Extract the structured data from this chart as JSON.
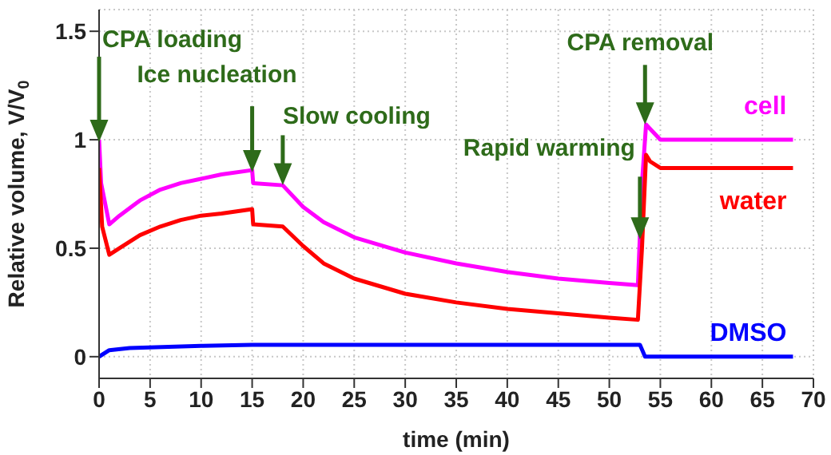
{
  "chart_data": {
    "type": "line",
    "xlabel": "time (min)",
    "ylabel": "Relative volume, V/V$_{0}$",
    "xlim": [
      0,
      70
    ],
    "xticks": [
      0,
      5,
      10,
      15,
      20,
      25,
      30,
      35,
      40,
      45,
      50,
      55,
      60,
      65,
      70
    ],
    "ylim": [
      -0.1,
      1.6
    ],
    "yticks": [
      0,
      0.5,
      1,
      1.5
    ],
    "grid": true,
    "legend": false,
    "marker": "none",
    "line_style": "solid",
    "series": [
      {
        "name": "cell",
        "color": "#ff00ff",
        "x": [
          0,
          0.2,
          1,
          2,
          4,
          6,
          8,
          10,
          12,
          15,
          15.1,
          18,
          20,
          22,
          25,
          30,
          35,
          40,
          45,
          50,
          52.8,
          53.2,
          53.6,
          54,
          55,
          68
        ],
        "values": [
          1.0,
          0.8,
          0.61,
          0.65,
          0.72,
          0.77,
          0.8,
          0.82,
          0.84,
          0.86,
          0.8,
          0.79,
          0.69,
          0.62,
          0.55,
          0.48,
          0.43,
          0.39,
          0.36,
          0.34,
          0.33,
          0.8,
          1.07,
          1.05,
          1.0,
          1.0
        ]
      },
      {
        "name": "water",
        "color": "#ff0000",
        "x": [
          0,
          0.3,
          1,
          2,
          4,
          6,
          8,
          10,
          12,
          15,
          15.1,
          18,
          20,
          22,
          25,
          30,
          35,
          40,
          45,
          50,
          52.8,
          53.2,
          53.6,
          54,
          55,
          68
        ],
        "values": [
          0.87,
          0.6,
          0.47,
          0.5,
          0.56,
          0.6,
          0.63,
          0.65,
          0.66,
          0.68,
          0.61,
          0.6,
          0.51,
          0.43,
          0.36,
          0.29,
          0.25,
          0.22,
          0.2,
          0.18,
          0.17,
          0.5,
          0.93,
          0.9,
          0.87,
          0.87
        ]
      },
      {
        "name": "DMSO",
        "color": "#0000ff",
        "x": [
          0,
          1,
          3,
          10,
          15,
          53,
          53.5,
          68
        ],
        "values": [
          0,
          0.03,
          0.04,
          0.05,
          0.055,
          0.055,
          0,
          0
        ]
      }
    ],
    "annotations": [
      {
        "text": "CPA loading",
        "x": 0,
        "y": 1.0
      },
      {
        "text": "Ice nucleation",
        "x": 15,
        "y": 0.86
      },
      {
        "text": "Slow cooling",
        "x": 18,
        "y": 0.8
      },
      {
        "text": "Rapid warming",
        "x": 53,
        "y": 0.55
      },
      {
        "text": "CPA removal",
        "x": 53.5,
        "y": 1.08
      }
    ]
  }
}
